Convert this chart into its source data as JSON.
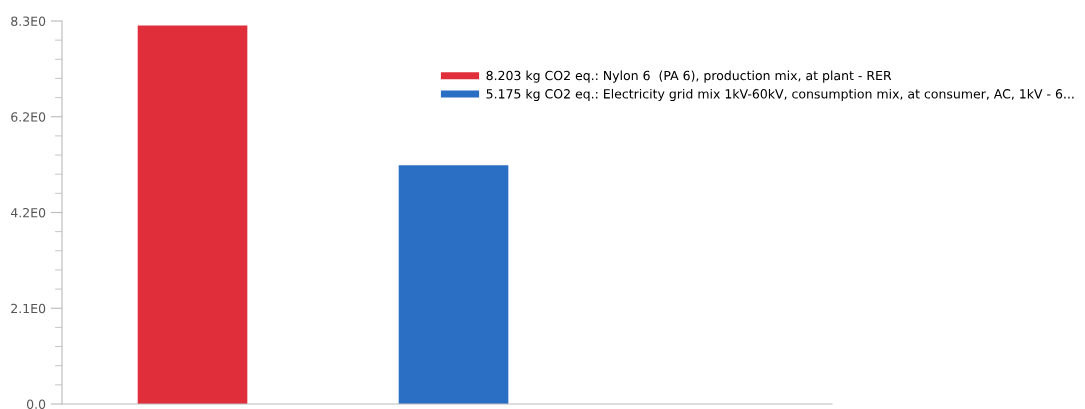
{
  "chart_data": {
    "type": "bar",
    "categories": [
      null,
      null
    ],
    "series": [
      {
        "name": "8.203 kg CO2 eq.: Nylon 6  (PA 6), production mix, at plant - RER",
        "color": "#e02f3a",
        "values": [
          8.203,
          null
        ]
      },
      {
        "name": "5.175 kg CO2 eq.: Electricity grid mix 1kV-60kV, consumption mix, at consumer, AC, 1kV - 6...",
        "color": "#2a6fc4",
        "values": [
          null,
          5.175
        ]
      }
    ],
    "ylim": [
      0,
      8.3
    ],
    "yticks": [
      {
        "value": 0,
        "label": "0.0"
      },
      {
        "value": 2.075,
        "label": "2.1E0"
      },
      {
        "value": 4.15,
        "label": "4.2E0"
      },
      {
        "value": 6.225,
        "label": "6.2E0"
      },
      {
        "value": 8.3,
        "label": "8.3E0"
      }
    ],
    "grid": false,
    "legend": "top right"
  }
}
